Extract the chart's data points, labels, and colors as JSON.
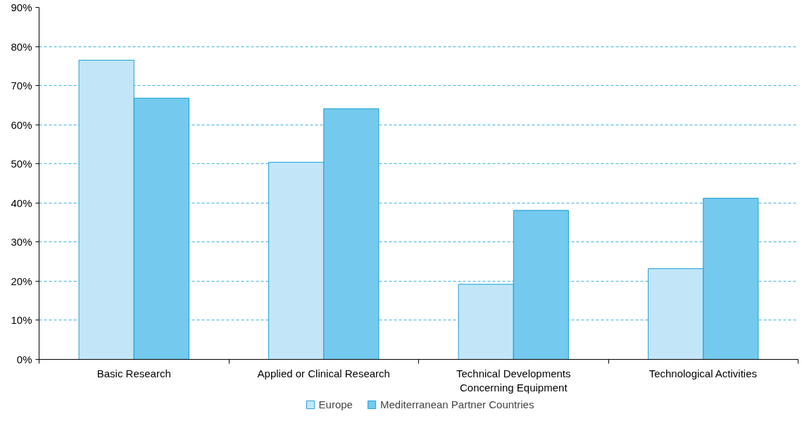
{
  "chart_data": {
    "type": "bar",
    "categories": [
      "Basic Research",
      "Applied or Clinical Research",
      "Technical Developments\nConcerning Equipment",
      "Technological Activities"
    ],
    "series": [
      {
        "name": "Europe",
        "color": "#c2e6f7",
        "values": [
          76.5,
          50.4,
          19.2,
          23.2
        ]
      },
      {
        "name": "Mediterranean Partner Countries",
        "color": "#74c9ee",
        "values": [
          66.8,
          64.1,
          38.1,
          41.2
        ]
      }
    ],
    "ylim": [
      0,
      90
    ],
    "yticks": [
      {
        "value": 0,
        "label": "0%"
      },
      {
        "value": 10,
        "label": "10%"
      },
      {
        "value": 20,
        "label": "20%"
      },
      {
        "value": 30,
        "label": "30%"
      },
      {
        "value": 40,
        "label": "40%"
      },
      {
        "value": 50,
        "label": "50%"
      },
      {
        "value": 60,
        "label": "60%"
      },
      {
        "value": 70,
        "label": "70%"
      },
      {
        "value": 80,
        "label": "80%"
      },
      {
        "value": 90,
        "label": "90%"
      }
    ],
    "grid": "y",
    "legend": "bottom"
  }
}
